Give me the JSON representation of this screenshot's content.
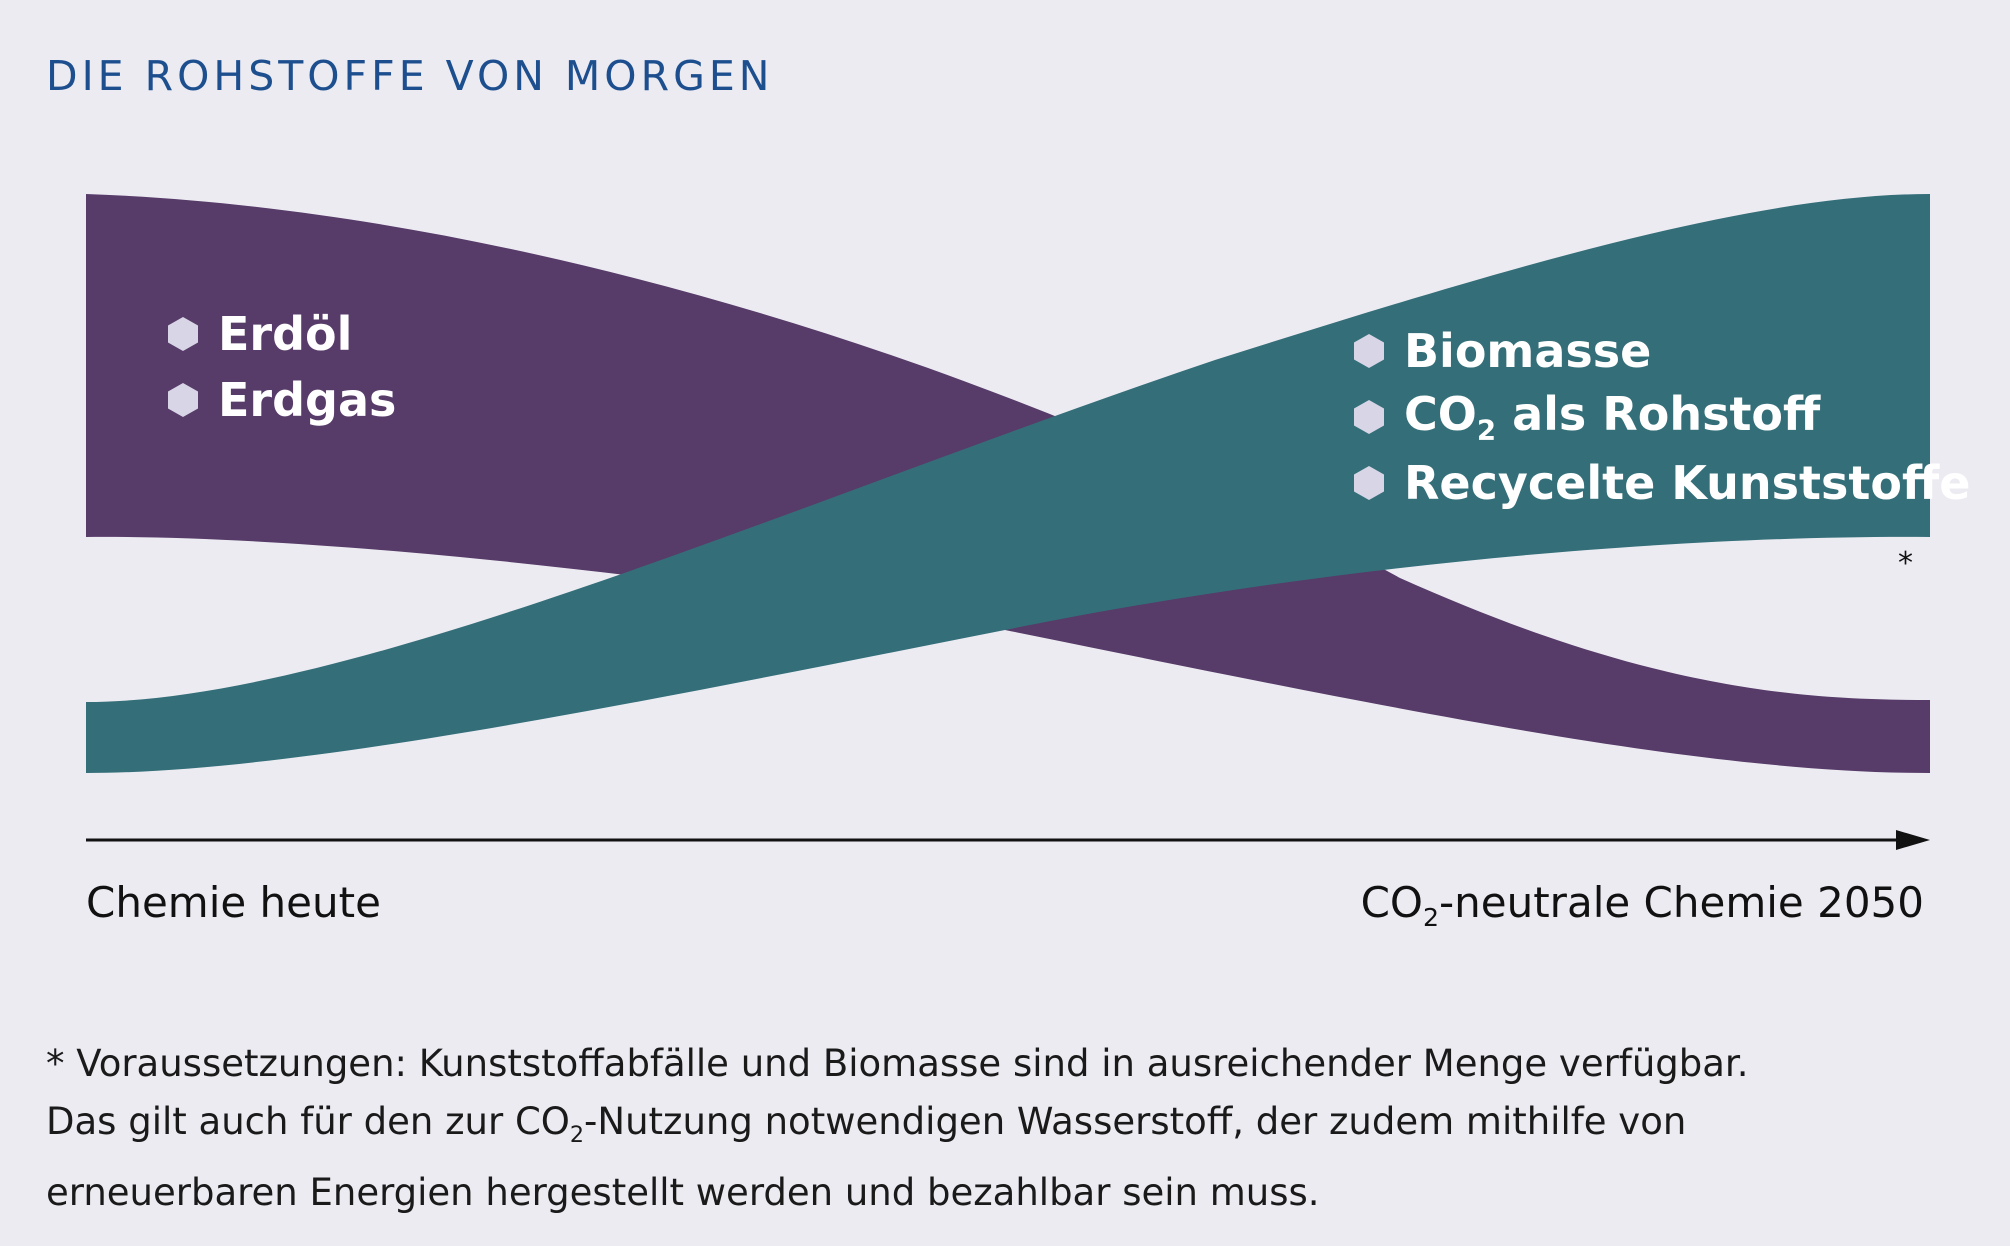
{
  "title": "DIE ROHSTOFFE VON MORGEN",
  "colors": {
    "background": "#ecebf2",
    "fossil_band": "#573b69",
    "renewable_band": "#346f79",
    "title": "#1d4f8f",
    "bullet": "#d8d6e6"
  },
  "left_labels": [
    "Erdöl",
    "Erdgas"
  ],
  "right_labels": {
    "biomass": "Biomasse",
    "co2_prefix": "CO",
    "co2_sub": "2",
    "co2_suffix": " als Rohstoff",
    "recycled": "Recycelte Kunststoffe"
  },
  "asterisk": "*",
  "axis": {
    "start_label": "Chemie heute",
    "end_prefix": "CO",
    "end_sub": "2",
    "end_suffix": "-neutrale Chemie 2050"
  },
  "footnote": {
    "line1": "* Voraussetzungen: Kunststoffabfälle und Biomasse sind in ausreichender Menge verfügbar.",
    "line2_prefix": "Das gilt auch für den zur CO",
    "line2_sub": "2",
    "line2_suffix": "-Nutzung notwendigen Wasserstoff, der zudem mithilfe von",
    "line3": "erneuerbaren Energien hergestellt werden und bezahlbar sein muss."
  }
}
